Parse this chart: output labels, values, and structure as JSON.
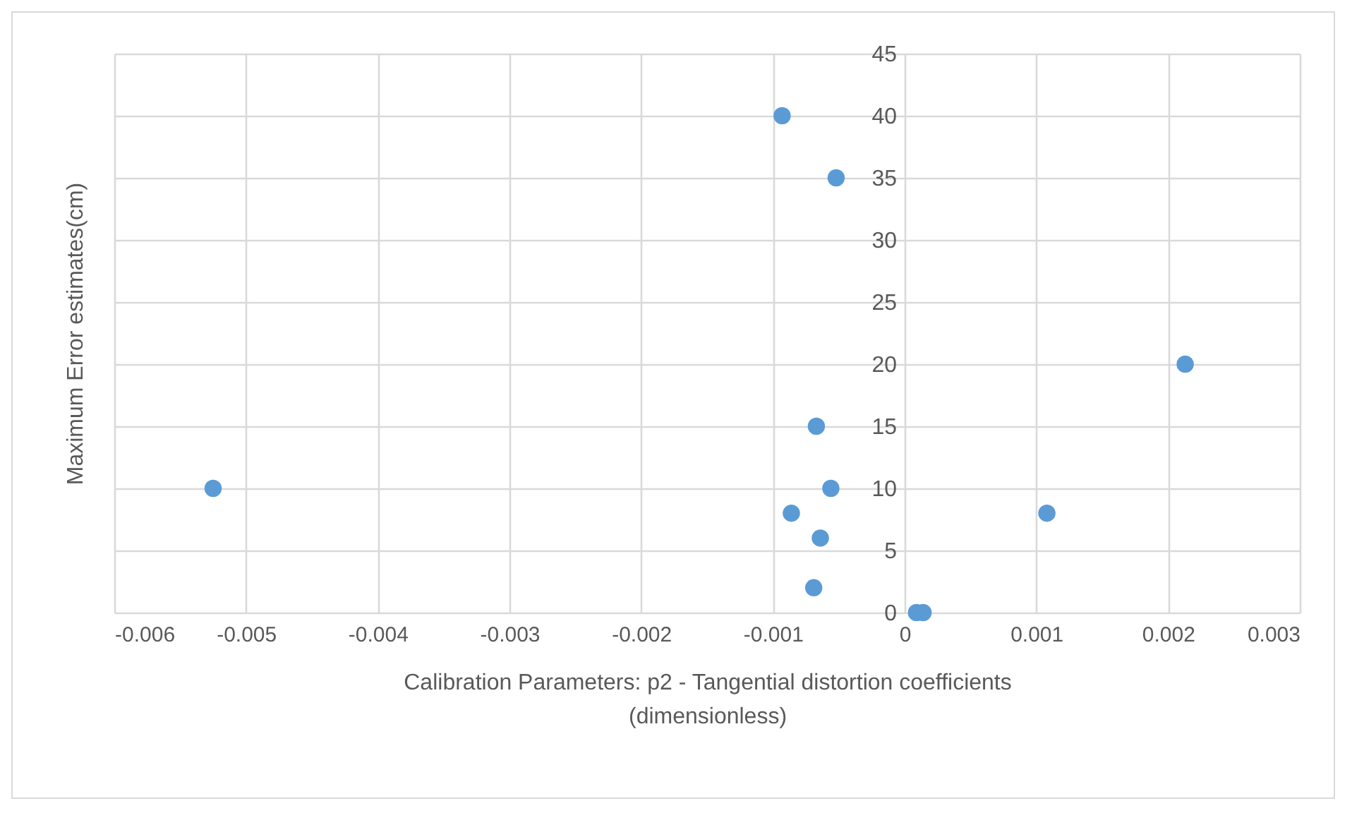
{
  "chart_data": {
    "type": "scatter",
    "xlabel": "Calibration Parameters: p2 - Tangential distortion coefficients (dimensionless)",
    "ylabel": "Maximum Error estimates(cm)",
    "x": [
      -0.00525,
      -0.00093,
      -0.00052,
      -0.00067,
      -0.00056,
      -0.00086,
      -0.00064,
      -0.00069,
      9e-05,
      0.00014,
      0.00213,
      0.00108
    ],
    "values": [
      10,
      40,
      35,
      15,
      10,
      8,
      6,
      2,
      0,
      0,
      20,
      8
    ],
    "color": "#5b9bd5",
    "marker": "circle",
    "xlim": [
      -0.006,
      0.003
    ],
    "xticks": [
      -0.006,
      -0.005,
      -0.004,
      -0.003,
      -0.002,
      -0.001,
      0,
      0.001,
      0.002,
      0.003
    ],
    "ylim": [
      0,
      45
    ],
    "yticks": [
      0,
      5,
      10,
      15,
      20,
      25,
      30,
      35,
      40,
      45
    ],
    "grid": true
  }
}
